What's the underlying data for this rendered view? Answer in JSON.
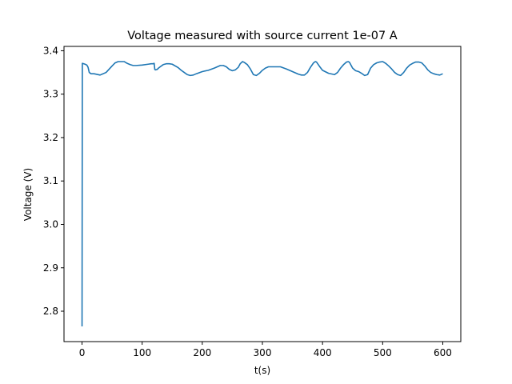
{
  "chart_data": {
    "type": "line",
    "title": "Voltage measured with source current 1e-07 A",
    "xlabel": "t(s)",
    "ylabel": "Voltage (V)",
    "xlim": [
      -30,
      630
    ],
    "ylim": [
      2.73,
      3.41
    ],
    "grid": false,
    "legend": "none",
    "x_ticks": [
      0,
      100,
      200,
      300,
      400,
      500,
      600
    ],
    "x_tick_labels": [
      "0",
      "100",
      "200",
      "300",
      "400",
      "500",
      "600"
    ],
    "y_ticks": [
      2.8,
      2.9,
      3.0,
      3.1,
      3.2,
      3.3,
      3.4
    ],
    "y_tick_labels": [
      "2.8",
      "2.9",
      "3.0",
      "3.1",
      "3.2",
      "3.3",
      "3.4"
    ],
    "line_color": "#1f77b4",
    "series": [
      {
        "x": [
          0,
          0.5,
          5,
          8,
          10,
          12,
          15,
          20,
          30,
          40,
          50,
          55,
          60,
          65,
          70,
          75,
          80,
          85,
          90,
          100,
          110,
          115,
          118,
          120,
          121,
          122,
          125,
          128,
          130,
          135,
          140,
          145,
          150,
          160,
          165,
          170,
          175,
          180,
          185,
          190,
          200,
          210,
          220,
          225,
          230,
          235,
          240,
          245,
          250,
          255,
          260,
          263,
          267,
          270,
          275,
          280,
          285,
          290,
          295,
          300,
          305,
          310,
          320,
          330,
          340,
          350,
          360,
          365,
          370,
          375,
          380,
          385,
          388,
          390,
          395,
          400,
          410,
          420,
          425,
          430,
          435,
          440,
          443,
          445,
          450,
          455,
          460,
          465,
          470,
          475,
          480,
          485,
          490,
          495,
          500,
          505,
          510,
          515,
          520,
          525,
          530,
          535,
          540,
          545,
          550,
          555,
          560,
          565,
          570,
          575,
          580,
          585,
          590,
          595,
          600
        ],
        "values": [
          2.765,
          3.371,
          3.369,
          3.367,
          3.362,
          3.35,
          3.347,
          3.347,
          3.344,
          3.35,
          3.365,
          3.372,
          3.375,
          3.375,
          3.375,
          3.371,
          3.368,
          3.366,
          3.366,
          3.367,
          3.369,
          3.37,
          3.37,
          3.371,
          3.357,
          3.356,
          3.357,
          3.361,
          3.363,
          3.368,
          3.37,
          3.37,
          3.369,
          3.361,
          3.355,
          3.35,
          3.345,
          3.343,
          3.344,
          3.347,
          3.352,
          3.355,
          3.36,
          3.363,
          3.366,
          3.366,
          3.363,
          3.357,
          3.354,
          3.356,
          3.362,
          3.37,
          3.375,
          3.373,
          3.368,
          3.358,
          3.345,
          3.343,
          3.348,
          3.355,
          3.36,
          3.363,
          3.363,
          3.363,
          3.358,
          3.352,
          3.346,
          3.344,
          3.344,
          3.35,
          3.362,
          3.372,
          3.375,
          3.374,
          3.364,
          3.355,
          3.348,
          3.345,
          3.35,
          3.36,
          3.368,
          3.374,
          3.375,
          3.373,
          3.36,
          3.354,
          3.352,
          3.348,
          3.343,
          3.345,
          3.36,
          3.368,
          3.372,
          3.374,
          3.375,
          3.371,
          3.365,
          3.358,
          3.35,
          3.345,
          3.343,
          3.35,
          3.36,
          3.367,
          3.371,
          3.374,
          3.374,
          3.372,
          3.365,
          3.356,
          3.35,
          3.347,
          3.345,
          3.344,
          3.347
        ]
      }
    ]
  }
}
